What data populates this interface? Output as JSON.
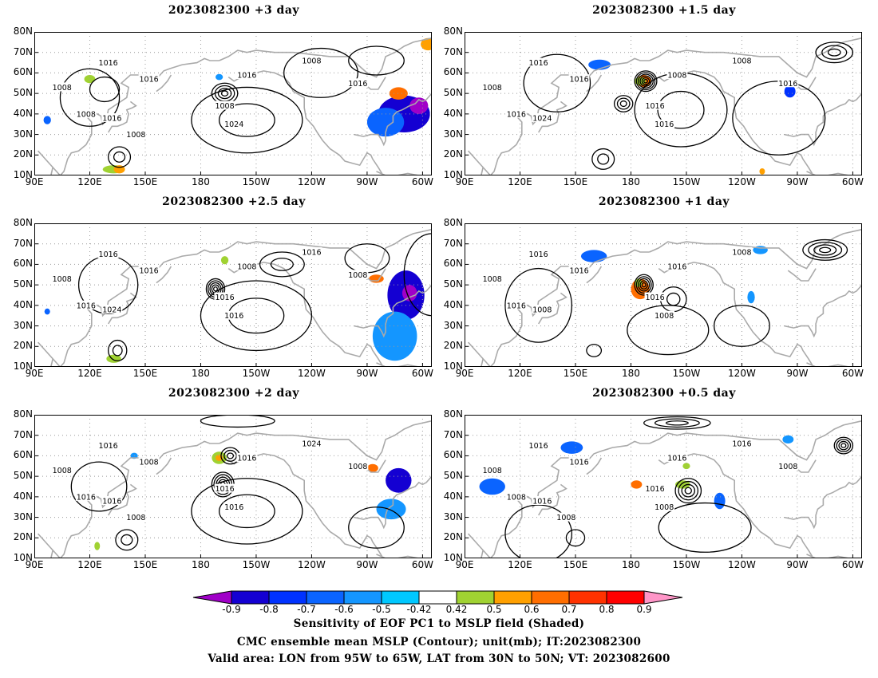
{
  "panels": [
    {
      "title": "2023082300  +3 day",
      "col": 0,
      "row": 0,
      "contour_labels": [
        "1016",
        "1016",
        "1016",
        "1008",
        "1008",
        "1008",
        "1016",
        "1024",
        "1008",
        "1016",
        "1008"
      ],
      "blobs": [
        {
          "lon": 290,
          "lat": 40,
          "rx": 14,
          "ry": 9,
          "v": -0.8
        },
        {
          "lon": 298,
          "lat": 44,
          "rx": 5,
          "ry": 4,
          "v": -0.9
        },
        {
          "lon": 280,
          "lat": 36,
          "rx": 10,
          "ry": 7,
          "v": -0.6
        },
        {
          "lon": 287,
          "lat": 50,
          "rx": 5,
          "ry": 3,
          "v": 0.7
        },
        {
          "lon": 303,
          "lat": 74,
          "rx": 4,
          "ry": 3,
          "v": 0.6
        },
        {
          "lon": 120,
          "lat": 57,
          "rx": 3,
          "ry": 2,
          "v": 0.5
        },
        {
          "lon": 133,
          "lat": 13,
          "rx": 6,
          "ry": 2,
          "v": 0.5
        },
        {
          "lon": 136,
          "lat": 13,
          "rx": 3,
          "ry": 2,
          "v": 0.6
        },
        {
          "lon": 97,
          "lat": 37,
          "rx": 2,
          "ry": 2,
          "v": -0.6
        },
        {
          "lon": 190,
          "lat": 58,
          "rx": 2,
          "ry": 1.5,
          "v": -0.5
        }
      ]
    },
    {
      "title": "2023082300  +1.5 day",
      "col": 1,
      "row": 0,
      "contour_labels": [
        "1016",
        "1008",
        "1016",
        "1008",
        "1016",
        "1008",
        "1024",
        "1016",
        "1016",
        "1016"
      ],
      "blobs": [
        {
          "lon": 187,
          "lat": 56,
          "rx": 4,
          "ry": 3,
          "v": 0.7
        },
        {
          "lon": 185,
          "lat": 56,
          "rx": 3,
          "ry": 2,
          "v": 0.5
        },
        {
          "lon": 163,
          "lat": 64,
          "rx": 6,
          "ry": 2.5,
          "v": -0.6
        },
        {
          "lon": 266,
          "lat": 51,
          "rx": 3,
          "ry": 3,
          "v": -0.7
        },
        {
          "lon": 251,
          "lat": 12,
          "rx": 1.5,
          "ry": 1.5,
          "v": 0.6
        }
      ]
    },
    {
      "title": "2023082300  +2.5 day",
      "col": 0,
      "row": 1,
      "contour_labels": [
        "1016",
        "1008",
        "1016",
        "1008",
        "1016",
        "1016",
        "1024",
        "1016",
        "1016",
        "1008"
      ],
      "blobs": [
        {
          "lon": 291,
          "lat": 45,
          "rx": 10,
          "ry": 12,
          "v": -0.8
        },
        {
          "lon": 293,
          "lat": 46,
          "rx": 4,
          "ry": 4,
          "v": -0.9
        },
        {
          "lon": 285,
          "lat": 25,
          "rx": 12,
          "ry": 12,
          "v": -0.5
        },
        {
          "lon": 275,
          "lat": 53,
          "rx": 4,
          "ry": 2,
          "v": 0.7
        },
        {
          "lon": 133,
          "lat": 14,
          "rx": 4,
          "ry": 2,
          "v": 0.5
        },
        {
          "lon": 193,
          "lat": 62,
          "rx": 2,
          "ry": 2,
          "v": 0.5
        },
        {
          "lon": 97,
          "lat": 37,
          "rx": 1.5,
          "ry": 1.5,
          "v": -0.6
        }
      ]
    },
    {
      "title": "2023082300  +1 day",
      "col": 1,
      "row": 1,
      "contour_labels": [
        "1016",
        "1016",
        "1016",
        "1008",
        "1016",
        "1008",
        "1008",
        "1008",
        "1016"
      ],
      "blobs": [
        {
          "lon": 185,
          "lat": 48,
          "rx": 5,
          "ry": 5,
          "v": 0.7
        },
        {
          "lon": 184,
          "lat": 51,
          "rx": 2,
          "ry": 2,
          "v": 0.5
        },
        {
          "lon": 160,
          "lat": 64,
          "rx": 7,
          "ry": 3,
          "v": -0.6
        },
        {
          "lon": 250,
          "lat": 67,
          "rx": 4,
          "ry": 2,
          "v": -0.5
        },
        {
          "lon": 245,
          "lat": 44,
          "rx": 2,
          "ry": 3,
          "v": -0.5
        }
      ]
    },
    {
      "title": "2023082300  +2 day",
      "col": 0,
      "row": 2,
      "contour_labels": [
        "1016",
        "1016",
        "1008",
        "1008",
        "1016",
        "1024",
        "1016",
        "1016",
        "1016",
        "1008",
        "1008"
      ],
      "blobs": [
        {
          "lon": 287,
          "lat": 48,
          "rx": 7,
          "ry": 6,
          "v": -0.8
        },
        {
          "lon": 283,
          "lat": 34,
          "rx": 8,
          "ry": 5,
          "v": -0.5
        },
        {
          "lon": 190,
          "lat": 59,
          "rx": 4,
          "ry": 3,
          "v": 0.5
        },
        {
          "lon": 190,
          "lat": 59,
          "rx": 2,
          "ry": 1.5,
          "v": 0.6
        },
        {
          "lon": 273,
          "lat": 54,
          "rx": 3,
          "ry": 2,
          "v": 0.7
        },
        {
          "lon": 144,
          "lat": 60,
          "rx": 2,
          "ry": 1.5,
          "v": -0.5
        },
        {
          "lon": 124,
          "lat": 16,
          "rx": 1.5,
          "ry": 2,
          "v": 0.5
        }
      ]
    },
    {
      "title": "2023082300  +0.5 day",
      "col": 1,
      "row": 2,
      "contour_labels": [
        "1016",
        "1016",
        "1016",
        "1008",
        "1008",
        "1016",
        "1016",
        "1008",
        "1016",
        "1008",
        "1008"
      ],
      "blobs": [
        {
          "lon": 105,
          "lat": 45,
          "rx": 7,
          "ry": 4,
          "v": -0.6
        },
        {
          "lon": 148,
          "lat": 64,
          "rx": 6,
          "ry": 3,
          "v": -0.6
        },
        {
          "lon": 228,
          "lat": 38,
          "rx": 3,
          "ry": 4,
          "v": -0.6
        },
        {
          "lon": 265,
          "lat": 68,
          "rx": 3,
          "ry": 2,
          "v": -0.5
        },
        {
          "lon": 183,
          "lat": 46,
          "rx": 3,
          "ry": 2,
          "v": 0.7
        },
        {
          "lon": 208,
          "lat": 46,
          "rx": 4,
          "ry": 2,
          "v": 0.5
        },
        {
          "lon": 210,
          "lat": 55,
          "rx": 2,
          "ry": 1.5,
          "v": 0.5
        }
      ]
    }
  ],
  "map": {
    "lon_min": 90,
    "lon_max": 305,
    "lat_min": 10,
    "lat_max": 80,
    "lat_ticks": [
      "10N",
      "20N",
      "30N",
      "40N",
      "50N",
      "60N",
      "70N",
      "80N"
    ],
    "lon_ticks": [
      "90E",
      "120E",
      "150E",
      "180",
      "150W",
      "120W",
      "90W",
      "60W"
    ],
    "lon_tick_values": [
      90,
      120,
      150,
      180,
      210,
      240,
      270,
      300
    ]
  },
  "colorbar": {
    "levels": [
      "-0.9",
      "-0.8",
      "-0.7",
      "-0.6",
      "-0.5",
      "-0.42",
      "0.42",
      "0.5",
      "0.6",
      "0.7",
      "0.8",
      "0.9"
    ],
    "colors": [
      "#a000c8",
      "#1400d2",
      "#0032ff",
      "#0a64ff",
      "#1496ff",
      "#00c8ff",
      "#ffffff",
      "#a0d232",
      "#ffa000",
      "#ff6e00",
      "#ff3200",
      "#ff0000",
      "#ff96c8"
    ]
  },
  "caption": {
    "line1": "Sensitivity of EOF PC1 to MSLP field (Shaded)",
    "line2": "CMC ensemble mean MSLP (Contour); unit(mb); IT:2023082300",
    "line3": "Valid area: LON from 95W to 65W, LAT from 30N to 50N; VT: 2023082600"
  },
  "style": {
    "land_color": "#aaaaaa",
    "contour_color": "#000000",
    "grid_color": "#999999"
  }
}
